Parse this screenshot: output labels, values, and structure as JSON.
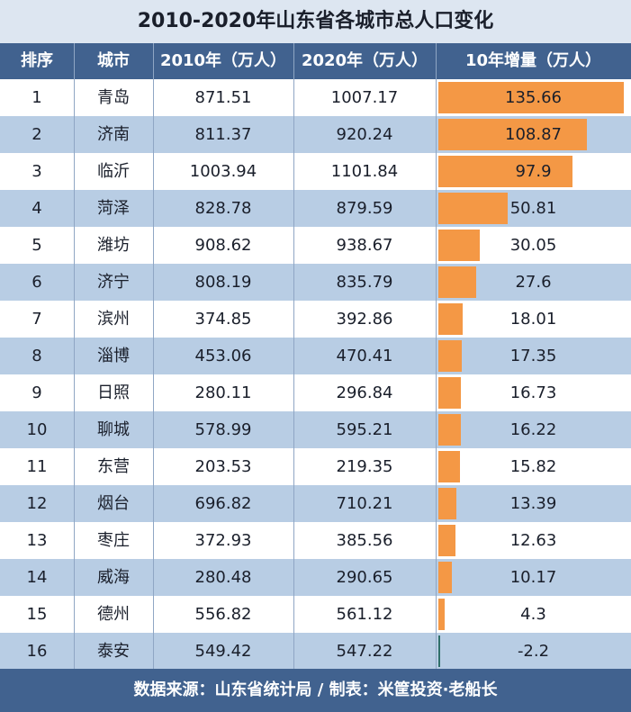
{
  "title": "2010-2020年山东省各城市总人口变化",
  "headers": {
    "rank": "排序",
    "city": "城市",
    "pop2010": "2010年（万人）",
    "pop2020": "2020年（万人）",
    "increase": "10年增量（万人）"
  },
  "footer": "数据来源：山东省统计局 / 制表：米筐投资·老船长",
  "colors": {
    "header": "#41628f",
    "row_alt": "#b8cde4",
    "bar": "#f49845"
  },
  "chart_data": {
    "type": "table",
    "rows": [
      {
        "rank": "1",
        "city": "青岛",
        "pop2010": "871.51",
        "pop2020": "1007.17",
        "increase": "135.66"
      },
      {
        "rank": "2",
        "city": "济南",
        "pop2010": "811.37",
        "pop2020": "920.24",
        "increase": "108.87"
      },
      {
        "rank": "3",
        "city": "临沂",
        "pop2010": "1003.94",
        "pop2020": "1101.84",
        "increase": "97.9"
      },
      {
        "rank": "4",
        "city": "菏泽",
        "pop2010": "828.78",
        "pop2020": "879.59",
        "increase": "50.81"
      },
      {
        "rank": "5",
        "city": "潍坊",
        "pop2010": "908.62",
        "pop2020": "938.67",
        "increase": "30.05"
      },
      {
        "rank": "6",
        "city": "济宁",
        "pop2010": "808.19",
        "pop2020": "835.79",
        "increase": "27.6"
      },
      {
        "rank": "7",
        "city": "滨州",
        "pop2010": "374.85",
        "pop2020": "392.86",
        "increase": "18.01"
      },
      {
        "rank": "8",
        "city": "淄博",
        "pop2010": "453.06",
        "pop2020": "470.41",
        "increase": "17.35"
      },
      {
        "rank": "9",
        "city": "日照",
        "pop2010": "280.11",
        "pop2020": "296.84",
        "increase": "16.73"
      },
      {
        "rank": "10",
        "city": "聊城",
        "pop2010": "578.99",
        "pop2020": "595.21",
        "increase": "16.22"
      },
      {
        "rank": "11",
        "city": "东营",
        "pop2010": "203.53",
        "pop2020": "219.35",
        "increase": "15.82"
      },
      {
        "rank": "12",
        "city": "烟台",
        "pop2010": "696.82",
        "pop2020": "710.21",
        "increase": "13.39"
      },
      {
        "rank": "13",
        "city": "枣庄",
        "pop2010": "372.93",
        "pop2020": "385.56",
        "increase": "12.63"
      },
      {
        "rank": "14",
        "city": "威海",
        "pop2010": "280.48",
        "pop2020": "290.65",
        "increase": "10.17"
      },
      {
        "rank": "15",
        "city": "德州",
        "pop2010": "556.82",
        "pop2020": "561.12",
        "increase": "4.3"
      },
      {
        "rank": "16",
        "city": "泰安",
        "pop2010": "549.42",
        "pop2020": "547.22",
        "increase": "-2.2"
      }
    ]
  }
}
